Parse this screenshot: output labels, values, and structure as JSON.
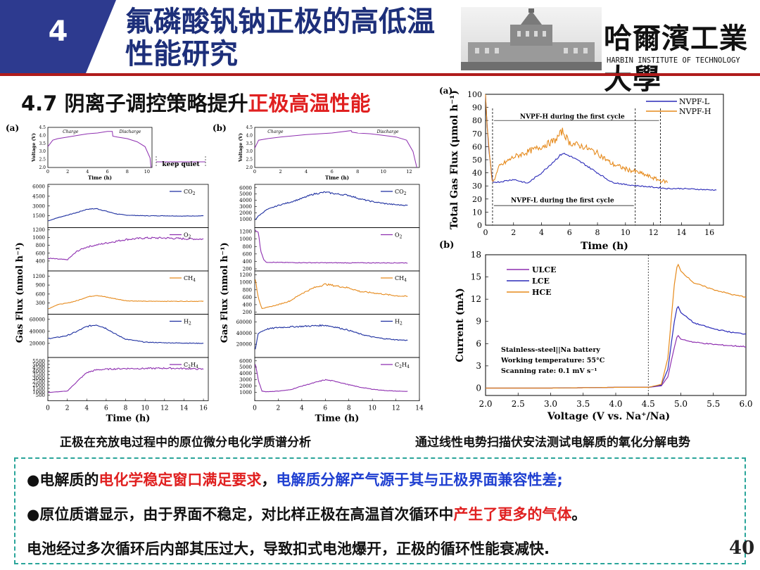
{
  "header": {
    "section_number": "4",
    "title_line1": "氟磷酸钒钠正极的高低温",
    "title_line2": "性能研究",
    "university_cn": "哈爾濱工業大學",
    "university_en": "HARBIN INSTITUTE OF TECHNOLOGY",
    "accent_colors": {
      "number_box": "#2d3a8f",
      "title": "#1d2f7a",
      "rule": "#b01b1b",
      "highlight": "#e02020"
    }
  },
  "subtitle": {
    "prefix": "4.7 阴离子调控策略提升",
    "highlight": "正极高温性能"
  },
  "captions": {
    "left": "正极在充放电过程中的原位微分电化学质谱分析",
    "right": "通过线性电势扫描伏安法测试电解质的氧化分解电势"
  },
  "bullets": {
    "line1_a": "●电解质的",
    "line1_b": "电化学稳定窗口满足要求",
    "line1_c": "，",
    "line1_d": "电解质分解产气源于其与正极界面兼容性差;",
    "line2_a": "●原位质谱显示，由于界面不稳定，对比样正极在高温首次循环中",
    "line2_b": "产生了更多的气体",
    "line2_c": "。",
    "line3": "电池经过多次循环后内部其压过大，导致扣式电池爆开，正极的循环性能衰减快."
  },
  "page_number": "40",
  "chart_data": [
    {
      "type": "line",
      "panel": "(a)",
      "title": "",
      "voltage_inset": {
        "ylabel": "Voltage (V)",
        "xlabel": "Time (h)",
        "yticks": [
          "4.5",
          "4.0",
          "3.5",
          "3.0",
          "2.5",
          "2.0"
        ],
        "xticks": [
          "0",
          "2",
          "4",
          "6",
          "8",
          "10"
        ],
        "labels": [
          "Charge",
          "Discharge"
        ],
        "note": "keep quiet"
      },
      "xlabel": "Time (h)",
      "ylabel": "Gas Flux (nmol h⁻¹)",
      "xticks": [
        "0",
        "2",
        "4",
        "6",
        "8",
        "10",
        "12",
        "14",
        "16"
      ],
      "xlim": [
        0,
        16.5
      ],
      "subplots": [
        {
          "name": "CO2",
          "color": "#1d2fa0",
          "yticks": [
            "6000",
            "4500",
            "3000",
            "1500"
          ],
          "ylim": [
            0,
            6000
          ],
          "x": [
            0,
            1,
            2,
            3,
            4,
            5,
            6,
            7,
            8,
            10,
            12,
            14,
            16
          ],
          "y": [
            700,
            1200,
            1600,
            2000,
            2500,
            2600,
            2200,
            1800,
            1600,
            1500,
            1500,
            1450,
            1500
          ]
        },
        {
          "name": "O2",
          "color": "#8e2fb0",
          "yticks": [
            "1200",
            "1000",
            "800",
            "600",
            "400"
          ],
          "ylim": [
            200,
            1200
          ],
          "x": [
            0,
            1,
            2,
            3,
            4,
            6,
            8,
            10,
            12,
            14,
            16
          ],
          "y": [
            470,
            450,
            430,
            650,
            760,
            860,
            950,
            990,
            990,
            970,
            960
          ]
        },
        {
          "name": "CH4",
          "color": "#e68a1c",
          "yticks": [
            "1200",
            "900",
            "600",
            "300"
          ],
          "ylim": [
            0,
            1300
          ],
          "x": [
            0,
            1,
            2,
            3,
            4,
            5,
            6,
            8,
            10,
            12,
            14,
            16
          ],
          "y": [
            100,
            250,
            300,
            380,
            500,
            560,
            500,
            380,
            360,
            360,
            360,
            360
          ]
        },
        {
          "name": "H2",
          "color": "#1d2fa0",
          "yticks": [
            "60000",
            "40000",
            "20000"
          ],
          "ylim": [
            0,
            65000
          ],
          "x": [
            0,
            1,
            2,
            3,
            4,
            5,
            6,
            7,
            8,
            10,
            12,
            14,
            16
          ],
          "y": [
            28000,
            30000,
            33000,
            40000,
            48000,
            51000,
            45000,
            35000,
            27000,
            22000,
            21000,
            20500,
            20000
          ]
        },
        {
          "name": "C2H4",
          "color": "#8e2fb0",
          "yticks": [
            "5500",
            "5000",
            "4500",
            "4000",
            "3500",
            "3000",
            "2500",
            "2000",
            "1500",
            "1000",
            "500"
          ],
          "ylim": [
            0,
            5700
          ],
          "x": [
            0,
            1,
            2,
            3,
            4,
            5,
            6,
            8,
            10,
            12,
            14,
            16
          ],
          "y": [
            900,
            1000,
            1100,
            2500,
            3800,
            4200,
            4300,
            4400,
            4400,
            4450,
            4400,
            4300
          ]
        }
      ]
    },
    {
      "type": "line",
      "panel": "(b)",
      "title": "",
      "voltage_inset": {
        "ylabel": "Voltage (V)",
        "xlabel": "Time (h)",
        "yticks": [
          "4.5",
          "4.0",
          "3.5",
          "3.0",
          "2.5",
          "2.0"
        ],
        "xticks": [
          "0",
          "2",
          "4",
          "6",
          "8",
          "10",
          "12"
        ],
        "labels": [
          "Charge",
          "Discharge"
        ]
      },
      "xlabel": "Time (h)",
      "ylabel": "Gas Flux (nmol h⁻¹)",
      "xticks": [
        "0",
        "2",
        "4",
        "6",
        "8",
        "10",
        "12",
        "14"
      ],
      "xlim": [
        0,
        14
      ],
      "subplots": [
        {
          "name": "CO2",
          "color": "#1d2fa0",
          "yticks": [
            "6000",
            "5000",
            "4000",
            "3000",
            "2000",
            "1000"
          ],
          "ylim": [
            0,
            6200
          ],
          "x": [
            0,
            0.3,
            1,
            2,
            3,
            4,
            5,
            6,
            7,
            8,
            9,
            10,
            11,
            12,
            13
          ],
          "y": [
            800,
            1500,
            2500,
            3200,
            3700,
            4300,
            5000,
            5300,
            5000,
            4800,
            4200,
            3800,
            3500,
            3300,
            3200
          ]
        },
        {
          "name": "O2",
          "color": "#8e2fb0",
          "yticks": [
            "1200",
            "1000",
            "800",
            "600",
            "400",
            "200"
          ],
          "ylim": [
            200,
            1250
          ],
          "x": [
            0,
            0.3,
            0.5,
            0.8,
            1,
            2,
            4,
            6,
            8,
            10,
            12,
            13
          ],
          "y": [
            1250,
            1200,
            700,
            420,
            380,
            370,
            365,
            362,
            360,
            360,
            360,
            360
          ]
        },
        {
          "name": "CH4",
          "color": "#e68a1c",
          "yticks": [
            "1200",
            "1000",
            "800",
            "600",
            "400",
            "200"
          ],
          "ylim": [
            200,
            1250
          ],
          "x": [
            0,
            0.3,
            0.6,
            1,
            2,
            3,
            4,
            5,
            6,
            7,
            8,
            9,
            10,
            11,
            12,
            13
          ],
          "y": [
            1150,
            600,
            300,
            320,
            400,
            500,
            700,
            850,
            950,
            900,
            850,
            750,
            720,
            680,
            640,
            620
          ]
        },
        {
          "name": "H2",
          "color": "#1d2fa0",
          "yticks": [
            "60000",
            "40000",
            "20000"
          ],
          "ylim": [
            0,
            70000
          ],
          "x": [
            0,
            0.3,
            1,
            2,
            3,
            4,
            5,
            6,
            7,
            8,
            9,
            10,
            11,
            12,
            13
          ],
          "y": [
            5000,
            40000,
            47000,
            50000,
            51000,
            52000,
            53000,
            54000,
            50000,
            45000,
            38000,
            33000,
            30000,
            28000,
            27000
          ]
        },
        {
          "name": "C2H4",
          "color": "#8e2fb0",
          "yticks": [
            "6000",
            "5000",
            "4000",
            "3000",
            "2000",
            "1000"
          ],
          "ylim": [
            0,
            6200
          ],
          "x": [
            0,
            0.3,
            0.6,
            1,
            2,
            3,
            4,
            5,
            6,
            7,
            8,
            9,
            10,
            11,
            12,
            13
          ],
          "y": [
            6000,
            3000,
            1200,
            1100,
            1200,
            1400,
            2000,
            2500,
            3000,
            2700,
            2200,
            1800,
            1500,
            1300,
            1200,
            1150
          ]
        }
      ]
    },
    {
      "type": "line",
      "panel": "(a)",
      "title": "",
      "xlabel": "Time (h)",
      "ylabel": "Total Gas Flux (μmol h⁻¹)",
      "xlim": [
        0,
        17
      ],
      "ylim": [
        0,
        100
      ],
      "xticks": [
        "0",
        "2",
        "4",
        "6",
        "8",
        "10",
        "12",
        "14",
        "16"
      ],
      "yticks": [
        "0",
        "10",
        "20",
        "30",
        "40",
        "50",
        "60",
        "70",
        "80",
        "90",
        "100"
      ],
      "annotations": [
        "NVPF-H during the first cycle",
        "NVPF-L during the first cycle"
      ],
      "legend": "top-right",
      "series": [
        {
          "name": "NVPF-L",
          "color": "#2a2ab8",
          "x": [
            0,
            0.2,
            0.5,
            1,
            2,
            3,
            4,
            5,
            5.5,
            6,
            7,
            8,
            9,
            10,
            11,
            12,
            13,
            14,
            15,
            16,
            16.5
          ],
          "y": [
            98,
            60,
            33,
            33,
            35,
            32,
            40,
            50,
            55,
            53,
            47,
            40,
            33,
            31,
            30,
            29,
            28,
            28,
            27.5,
            27,
            27
          ]
        },
        {
          "name": "NVPF-H",
          "color": "#e68a1c",
          "x": [
            0,
            0.2,
            0.5,
            1,
            2,
            3,
            4,
            5,
            5.5,
            6,
            7,
            8,
            9,
            10,
            11,
            12,
            12.5,
            13
          ],
          "y": [
            97,
            62,
            32,
            45,
            52,
            56,
            60,
            65,
            72,
            63,
            60,
            55,
            47,
            43,
            40,
            36,
            34,
            33
          ]
        }
      ]
    },
    {
      "type": "line",
      "panel": "(b)",
      "title": "",
      "xlabel": "Voltage (V vs. Na⁺/Na)",
      "ylabel": "Current (mA)",
      "xlim": [
        2.0,
        6.0
      ],
      "ylim": [
        -1,
        18
      ],
      "xticks": [
        "2.0",
        "2.5",
        "3.0",
        "3.5",
        "4.0",
        "4.5",
        "5.0",
        "5.5",
        "6.0"
      ],
      "yticks": [
        "0",
        "3",
        "6",
        "9",
        "12",
        "15",
        "18"
      ],
      "legend": "top-left",
      "annotations": [
        "Stainless-steel||Na battery",
        "Working temperature: 55°C",
        "Scanning rate: 0.1 mV s⁻¹"
      ],
      "series": [
        {
          "name": "ULCE",
          "color": "#8e2fb0",
          "x": [
            2.0,
            3.0,
            4.0,
            4.5,
            4.7,
            4.8,
            4.9,
            4.95,
            5.0,
            5.2,
            5.5,
            5.8,
            6.0
          ],
          "y": [
            0,
            0,
            0.1,
            0.1,
            0.3,
            1.5,
            5.5,
            7.2,
            6.6,
            6.2,
            5.9,
            5.7,
            5.6
          ]
        },
        {
          "name": "LCE",
          "color": "#2a2ab8",
          "x": [
            2.0,
            3.0,
            4.0,
            4.5,
            4.7,
            4.8,
            4.9,
            4.95,
            5.0,
            5.2,
            5.5,
            5.8,
            6.0
          ],
          "y": [
            0,
            0,
            0.1,
            0.1,
            0.4,
            2.5,
            9,
            11.2,
            10.2,
            8.8,
            8.0,
            7.5,
            7.3
          ]
        },
        {
          "name": "HCE",
          "color": "#e68a1c",
          "x": [
            2.0,
            3.0,
            4.0,
            4.5,
            4.7,
            4.8,
            4.9,
            4.95,
            5.0,
            5.2,
            5.5,
            5.8,
            6.0
          ],
          "y": [
            0,
            0,
            0.1,
            0.1,
            0.5,
            4,
            14,
            16.9,
            15.8,
            14.2,
            13.3,
            12.6,
            12.3
          ]
        }
      ]
    }
  ]
}
